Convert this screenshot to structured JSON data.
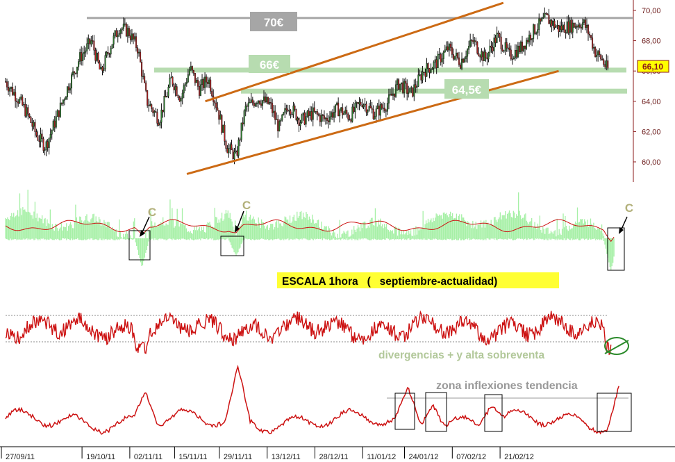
{
  "chart_data": [
    {
      "type": "line",
      "panel": "price-candles",
      "title": "",
      "ylim": [
        59,
        70.5
      ],
      "yticks": [
        "70,00",
        "68,00",
        "66,00",
        "64,00",
        "62,00",
        "60,00"
      ],
      "ytick_values": [
        70,
        68,
        66,
        64,
        62,
        60
      ],
      "last_price_label": "66,10",
      "last_price": 66.1,
      "price_path": {
        "t": [
          0,
          0.02,
          0.035,
          0.05,
          0.065,
          0.08,
          0.1,
          0.12,
          0.14,
          0.155,
          0.17,
          0.185,
          0.2,
          0.215,
          0.23,
          0.25,
          0.27,
          0.285,
          0.3,
          0.315,
          0.33,
          0.345,
          0.36,
          0.375,
          0.39,
          0.41,
          0.43,
          0.445,
          0.46,
          0.48,
          0.5,
          0.52,
          0.54,
          0.56,
          0.58,
          0.6,
          0.62,
          0.64,
          0.66,
          0.68,
          0.7,
          0.72,
          0.74,
          0.76,
          0.78,
          0.8,
          0.82,
          0.84,
          0.86,
          0.88,
          0.9,
          0.92,
          0.94,
          0.95,
          0.96,
          0.97,
          0.975,
          0.98
        ],
        "y": [
          65.3,
          64.2,
          63.2,
          61.8,
          61.0,
          62.6,
          64.8,
          66.8,
          68.0,
          65.8,
          67.6,
          68.9,
          68.6,
          67.5,
          64.0,
          62.8,
          65.5,
          64.2,
          66.2,
          64.8,
          65.5,
          63.5,
          61.0,
          60.3,
          63.5,
          64.2,
          63.8,
          62.2,
          63.8,
          62.7,
          63.2,
          62.8,
          63.5,
          63.0,
          64.0,
          63.2,
          63.8,
          65.2,
          64.5,
          66.0,
          66.5,
          67.5,
          66.6,
          68.0,
          66.8,
          68.3,
          67.0,
          67.6,
          68.7,
          69.5,
          68.8,
          69.0,
          69.2,
          68.4,
          67.2,
          66.8,
          66.4,
          66.1
        ]
      },
      "annotations": [
        {
          "text": "70€",
          "value": 70
        },
        {
          "text": "66€",
          "value": 66
        },
        {
          "text": "64,5€",
          "value": 64.5
        }
      ],
      "resistance_line_value": 69.5,
      "channel": {
        "upper": [
          [
            0.325,
            64.0
          ],
          [
            0.81,
            70.5
          ]
        ],
        "lower": [
          [
            0.295,
            59.2
          ],
          [
            0.9,
            66.0
          ]
        ]
      }
    },
    {
      "type": "area",
      "panel": "volume-oscillator",
      "markers": [
        "C",
        "C",
        "C"
      ]
    },
    {
      "type": "line",
      "panel": "rsi-oscillator",
      "annotation": "divergencias + y alta sobreventa"
    },
    {
      "type": "line",
      "panel": "momentum-oscillator",
      "annotation": "zona inflexiones tendencia"
    }
  ],
  "scale_label": "ESCALA 1hora   (   septiembre-actualidad)",
  "x_axis": {
    "dates": [
      "27/09/11",
      "19/10/11",
      "02/11/11",
      "15/11/11",
      "29/11/11",
      "13/12/11",
      "28/12/11",
      "11/01/12",
      "24/01/12",
      "07/02/12",
      "21/02/12"
    ],
    "date_pos": [
      0.0,
      0.135,
      0.215,
      0.29,
      0.365,
      0.445,
      0.525,
      0.605,
      0.675,
      0.755,
      0.835
    ]
  },
  "colors": {
    "candles": "#111111",
    "channel": "#cc6a14",
    "resistance": "#a6a6a6",
    "support_band": "#b7dcb0",
    "oscillator_fill": "#a6f0a6",
    "oscillator_line": "#cc1111",
    "scale_label_bg": "#ffff33",
    "annotation_green": "#9ccc9c",
    "annotation_gray": "#999999"
  }
}
